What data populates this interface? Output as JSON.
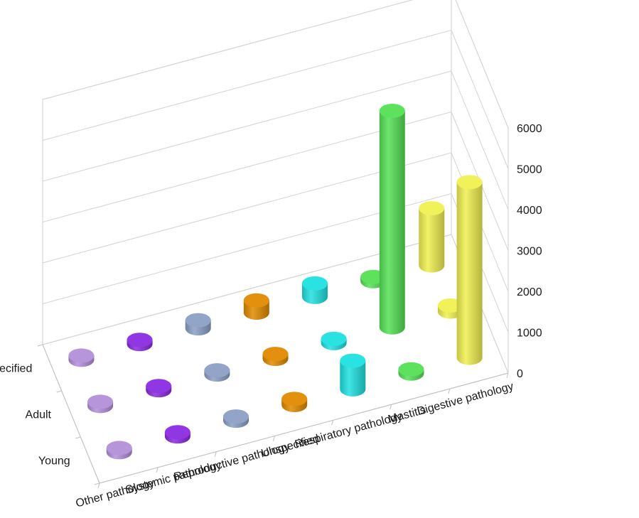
{
  "chart_data": {
    "type": "bar",
    "subtype": "3d-cylinder-grid",
    "title": "",
    "x_categories": [
      "Other pathology",
      "Systemic pathology",
      "Reproductive pathology",
      "Unspecified",
      "Respiratory pathology",
      "Mastitis",
      "Digestive pathology"
    ],
    "y_categories": [
      "Young",
      "Adult",
      "Unspecified"
    ],
    "zlim": [
      0,
      6000
    ],
    "z_ticks": [
      "0",
      "1000",
      "2000",
      "3000",
      "4000",
      "5000",
      "6000"
    ],
    "grid": true,
    "colors": {
      "Other pathology": "#b38fd9",
      "Systemic pathology": "#8a2be2",
      "Reproductive pathology": "#8c9fc4",
      "Unspecified": "#e08a00",
      "Respiratory pathology": "#1fe0e0",
      "Mastitis": "#55e055",
      "Digestive pathology": "#f0f050"
    },
    "series": [
      {
        "x": "Other pathology",
        "values": [
          20,
          20,
          20
        ]
      },
      {
        "x": "Systemic pathology",
        "values": [
          30,
          30,
          30
        ]
      },
      {
        "x": "Reproductive pathology",
        "values": [
          40,
          60,
          200
        ]
      },
      {
        "x": "Unspecified",
        "values": [
          150,
          120,
          300
        ]
      },
      {
        "x": "Respiratory pathology",
        "values": [
          700,
          80,
          330
        ]
      },
      {
        "x": "Mastitis",
        "values": [
          0,
          5300,
          0
        ]
      },
      {
        "x": "Digestive pathology",
        "values": [
          4300,
          150,
          1400
        ]
      }
    ]
  }
}
